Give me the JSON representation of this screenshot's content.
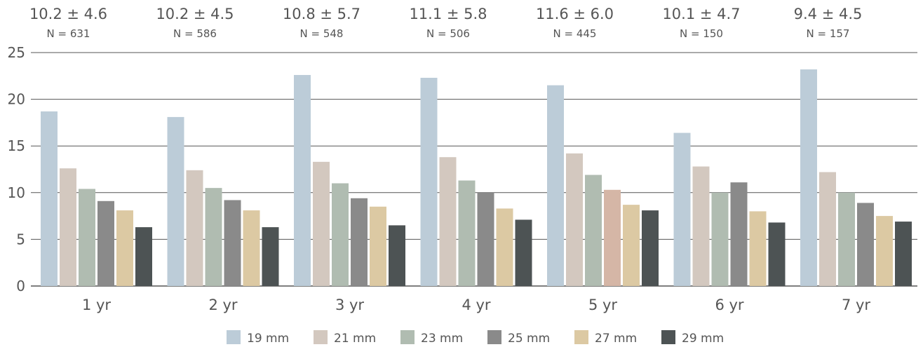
{
  "chart_data": {
    "type": "bar",
    "title": "",
    "xlabel": "",
    "ylabel": "",
    "ylim": [
      0,
      25
    ],
    "yticks": [
      0,
      5,
      10,
      15,
      20,
      25
    ],
    "grid": "horizontal",
    "legend_position": "bottom",
    "categories": [
      "1 yr",
      "2 yr",
      "3 yr",
      "4 yr",
      "5 yr",
      "6 yr",
      "7 yr"
    ],
    "group_annotations": [
      {
        "mean": "10.2 ± 4.6",
        "n": "N = 631"
      },
      {
        "mean": "10.2 ± 4.5",
        "n": "N = 586"
      },
      {
        "mean": "10.8 ± 5.7",
        "n": "N = 548"
      },
      {
        "mean": "11.1 ± 5.8",
        "n": "N = 506"
      },
      {
        "mean": "11.6 ± 6.0",
        "n": "N = 445"
      },
      {
        "mean": "10.1 ± 4.7",
        "n": "N = 150"
      },
      {
        "mean": "9.4 ± 4.5",
        "n": "N = 157"
      }
    ],
    "series": [
      {
        "name": "19 mm",
        "color": "#bcccd8",
        "values": [
          18.7,
          18.1,
          22.6,
          22.3,
          21.5,
          16.4,
          23.2
        ]
      },
      {
        "name": "21 mm",
        "color": "#d3c8bf",
        "values": [
          12.6,
          12.4,
          13.3,
          13.8,
          14.2,
          12.8,
          12.2
        ]
      },
      {
        "name": "23 mm",
        "color": "#b0bcb1",
        "values": [
          10.4,
          10.5,
          11.0,
          11.3,
          11.9,
          10.0,
          10.0
        ]
      },
      {
        "name": "25 mm",
        "color": "#8a8a8a",
        "values": [
          9.1,
          9.2,
          9.4,
          10.0,
          10.3,
          11.1,
          8.9
        ]
      },
      {
        "name": "27 mm",
        "color": "#dcc9a3",
        "values": [
          8.1,
          8.1,
          8.5,
          8.3,
          8.7,
          8.0,
          7.5
        ]
      },
      {
        "name": "29 mm",
        "color": "#4d5354",
        "values": [
          6.3,
          6.3,
          6.5,
          7.1,
          8.1,
          6.8,
          6.9
        ]
      }
    ],
    "special_bar_colors": [
      {
        "series": 3,
        "category": 4,
        "color": "#d5b6a6"
      }
    ],
    "colors": {
      "text": "#555555",
      "grid": "#555555",
      "axis": "#555555"
    }
  }
}
